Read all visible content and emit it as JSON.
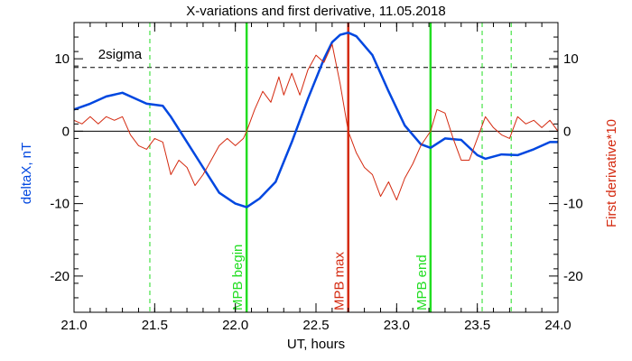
{
  "chart_data": {
    "type": "line",
    "title": "X-variations and first derivative, 11.05.2018",
    "xlabel": "UT, hours",
    "ylabel_left": "deltaX, nT",
    "ylabel_right": "First derivative*10",
    "xlim": [
      21.0,
      24.0
    ],
    "ylim": [
      -25,
      15
    ],
    "x_ticks": [
      "21.0",
      "21.5",
      "22.0",
      "22.5",
      "23.0",
      "23.5",
      "24.0"
    ],
    "x_tick_values": [
      21.0,
      21.5,
      22.0,
      22.5,
      23.0,
      23.5,
      24.0
    ],
    "y_ticks_left": [
      "10",
      "0",
      "-10",
      "-20"
    ],
    "y_ticks_right": [
      "10",
      "0",
      "-10",
      "-20"
    ],
    "y_tick_values": [
      10,
      0,
      -10,
      -20
    ],
    "grid": false,
    "colors": {
      "deltaX": "#0047e0",
      "derivative": "#d42a10",
      "mpb": "#22dd22",
      "mpb_max": "#d42a10",
      "threshold": "#000000"
    },
    "sigma_label": "2sigma",
    "sigma_level": 8.8,
    "zero_level": 0,
    "vertical_markers": [
      {
        "x": 22.07,
        "label": "MPB begin",
        "style": "solid",
        "color": "#22dd22"
      },
      {
        "x": 22.7,
        "label": "MPB max",
        "style": "solid",
        "color": "#d42a10"
      },
      {
        "x": 23.21,
        "label": "MPB end",
        "style": "solid",
        "color": "#22dd22"
      },
      {
        "x": 21.47,
        "label": "",
        "style": "dashed",
        "color": "#22dd22"
      },
      {
        "x": 23.53,
        "label": "",
        "style": "dashed",
        "color": "#22dd22"
      },
      {
        "x": 23.71,
        "label": "",
        "style": "dashed",
        "color": "#22dd22"
      }
    ],
    "series": [
      {
        "key": "deltaX",
        "x": [
          21.0,
          21.1,
          21.2,
          21.3,
          21.4,
          21.45,
          21.55,
          21.6,
          21.7,
          21.8,
          21.9,
          22.0,
          22.07,
          22.15,
          22.25,
          22.35,
          22.45,
          22.55,
          22.6,
          22.65,
          22.7,
          22.75,
          22.85,
          22.95,
          23.05,
          23.15,
          23.21,
          23.3,
          23.4,
          23.5,
          23.55,
          23.65,
          23.75,
          23.85,
          23.95,
          24.0
        ],
        "values": [
          3.0,
          3.8,
          4.8,
          5.3,
          4.3,
          3.8,
          3.5,
          2.0,
          -1.5,
          -5.0,
          -8.5,
          -10.0,
          -10.5,
          -9.3,
          -7.0,
          -1.5,
          4.5,
          10.0,
          12.3,
          13.3,
          13.6,
          13.1,
          10.5,
          5.5,
          0.8,
          -1.8,
          -2.3,
          -1.0,
          -1.2,
          -3.3,
          -3.8,
          -3.2,
          -3.3,
          -2.5,
          -1.5,
          -1.5
        ]
      },
      {
        "key": "derivative",
        "x": [
          21.0,
          21.05,
          21.1,
          21.15,
          21.2,
          21.25,
          21.3,
          21.35,
          21.4,
          21.45,
          21.5,
          21.55,
          21.6,
          21.65,
          21.7,
          21.75,
          21.8,
          21.85,
          21.9,
          21.95,
          22.0,
          22.05,
          22.07,
          22.12,
          22.17,
          22.22,
          22.27,
          22.3,
          22.35,
          22.4,
          22.45,
          22.5,
          22.55,
          22.6,
          22.65,
          22.7,
          22.75,
          22.8,
          22.85,
          22.9,
          22.95,
          23.0,
          23.05,
          23.1,
          23.15,
          23.21,
          23.25,
          23.3,
          23.35,
          23.4,
          23.45,
          23.5,
          23.55,
          23.6,
          23.65,
          23.7,
          23.75,
          23.8,
          23.85,
          23.9,
          23.95,
          24.0
        ],
        "values": [
          1.5,
          1.0,
          2.0,
          1.0,
          2.0,
          1.5,
          2.0,
          -0.5,
          -2.0,
          -2.5,
          -1.0,
          -1.5,
          -6.0,
          -4.0,
          -5.0,
          -7.5,
          -6.0,
          -4.0,
          -2.0,
          -1.0,
          -2.0,
          -1.0,
          0.0,
          3.0,
          5.5,
          4.0,
          7.5,
          5.0,
          8.0,
          5.0,
          8.5,
          10.5,
          9.5,
          12.0,
          6.5,
          0.0,
          -3.0,
          -5.0,
          -6.0,
          -9.0,
          -7.0,
          -9.5,
          -6.5,
          -4.5,
          -2.0,
          0.0,
          3.0,
          2.5,
          -1.0,
          -4.0,
          -4.0,
          -1.0,
          2.0,
          0.5,
          -0.5,
          -1.0,
          2.0,
          1.0,
          1.5,
          0.5,
          1.5,
          0.0
        ]
      }
    ]
  }
}
